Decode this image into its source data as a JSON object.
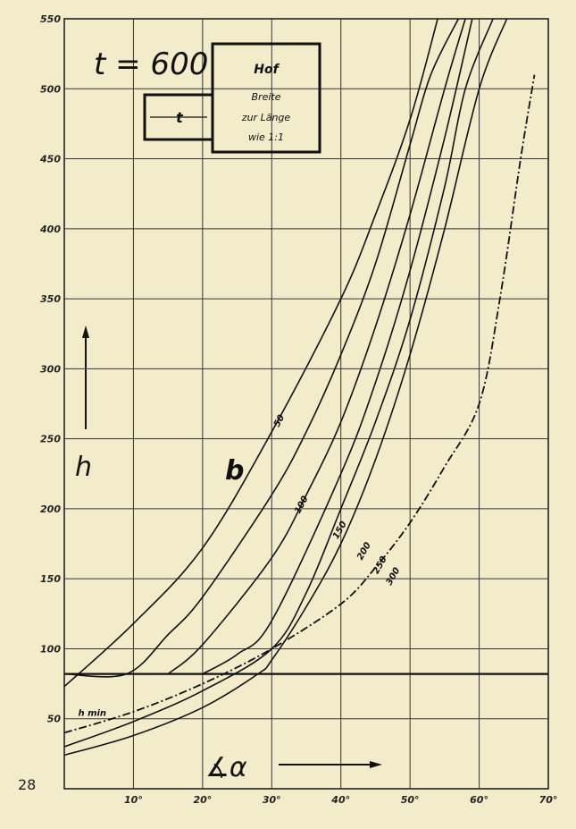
{
  "page_number": "28",
  "title": {
    "text": "t = 600",
    "box_top": "Hof",
    "box_lines": [
      "Breite",
      "zur Länge",
      "wie 1:1"
    ],
    "side_label": "t"
  },
  "chart_data": {
    "type": "line",
    "xlabel": "∡α",
    "ylabel": "h",
    "family_label": "b",
    "xlim": [
      0,
      70
    ],
    "ylim": [
      0,
      550
    ],
    "x_ticks": [
      10,
      20,
      30,
      40,
      50,
      60,
      70
    ],
    "x_tick_labels": [
      "10°",
      "20°",
      "30°",
      "40°",
      "50°",
      "60°",
      "70°"
    ],
    "y_ticks": [
      50,
      100,
      150,
      200,
      250,
      300,
      350,
      400,
      450,
      500,
      550
    ],
    "y_tick_labels": [
      "50",
      "100",
      "150",
      "200",
      "250",
      "300",
      "350",
      "400",
      "450",
      "500",
      "550"
    ],
    "hline": 82,
    "series": [
      {
        "name": "50",
        "points": [
          [
            0,
            73
          ],
          [
            10,
            118
          ],
          [
            20,
            172
          ],
          [
            30,
            255
          ],
          [
            40,
            350
          ],
          [
            45,
            410
          ],
          [
            50,
            478
          ],
          [
            54,
            550
          ]
        ]
      },
      {
        "name": "100",
        "points": [
          [
            0,
            82
          ],
          [
            9,
            82
          ],
          [
            15,
            110
          ],
          [
            20,
            137
          ],
          [
            30,
            210
          ],
          [
            35,
            255
          ],
          [
            40,
            310
          ],
          [
            45,
            375
          ],
          [
            50,
            460
          ],
          [
            53,
            510
          ],
          [
            57,
            550
          ]
        ]
      },
      {
        "name": "150",
        "points": [
          [
            15,
            82
          ],
          [
            20,
            103
          ],
          [
            30,
            165
          ],
          [
            35,
            210
          ],
          [
            40,
            262
          ],
          [
            45,
            330
          ],
          [
            50,
            410
          ],
          [
            55,
            500
          ],
          [
            58,
            550
          ]
        ]
      },
      {
        "name": "200",
        "points": [
          [
            20,
            82
          ],
          [
            25,
            96
          ],
          [
            30,
            120
          ],
          [
            40,
            225
          ],
          [
            45,
            290
          ],
          [
            50,
            370
          ],
          [
            55,
            465
          ],
          [
            59,
            550
          ]
        ]
      },
      {
        "name": "250",
        "points": [
          [
            0,
            30
          ],
          [
            10,
            48
          ],
          [
            20,
            70
          ],
          [
            30,
            100
          ],
          [
            35,
            140
          ],
          [
            40,
            200
          ],
          [
            45,
            262
          ],
          [
            50,
            335
          ],
          [
            55,
            430
          ],
          [
            58,
            500
          ],
          [
            62,
            550
          ]
        ]
      },
      {
        "name": "300",
        "points": [
          [
            0,
            24
          ],
          [
            10,
            38
          ],
          [
            20,
            58
          ],
          [
            28,
            82
          ],
          [
            30,
            92
          ],
          [
            35,
            130
          ],
          [
            40,
            175
          ],
          [
            45,
            235
          ],
          [
            50,
            310
          ],
          [
            55,
            400
          ],
          [
            60,
            500
          ],
          [
            64,
            550
          ]
        ]
      },
      {
        "name": "h min",
        "style": "dashdot",
        "points": [
          [
            0,
            40
          ],
          [
            10,
            55
          ],
          [
            20,
            75
          ],
          [
            30,
            100
          ],
          [
            40,
            132
          ],
          [
            45,
            158
          ],
          [
            50,
            190
          ],
          [
            55,
            230
          ],
          [
            60,
            275
          ],
          [
            63,
            350
          ],
          [
            66,
            450
          ],
          [
            68,
            510
          ]
        ]
      }
    ]
  }
}
